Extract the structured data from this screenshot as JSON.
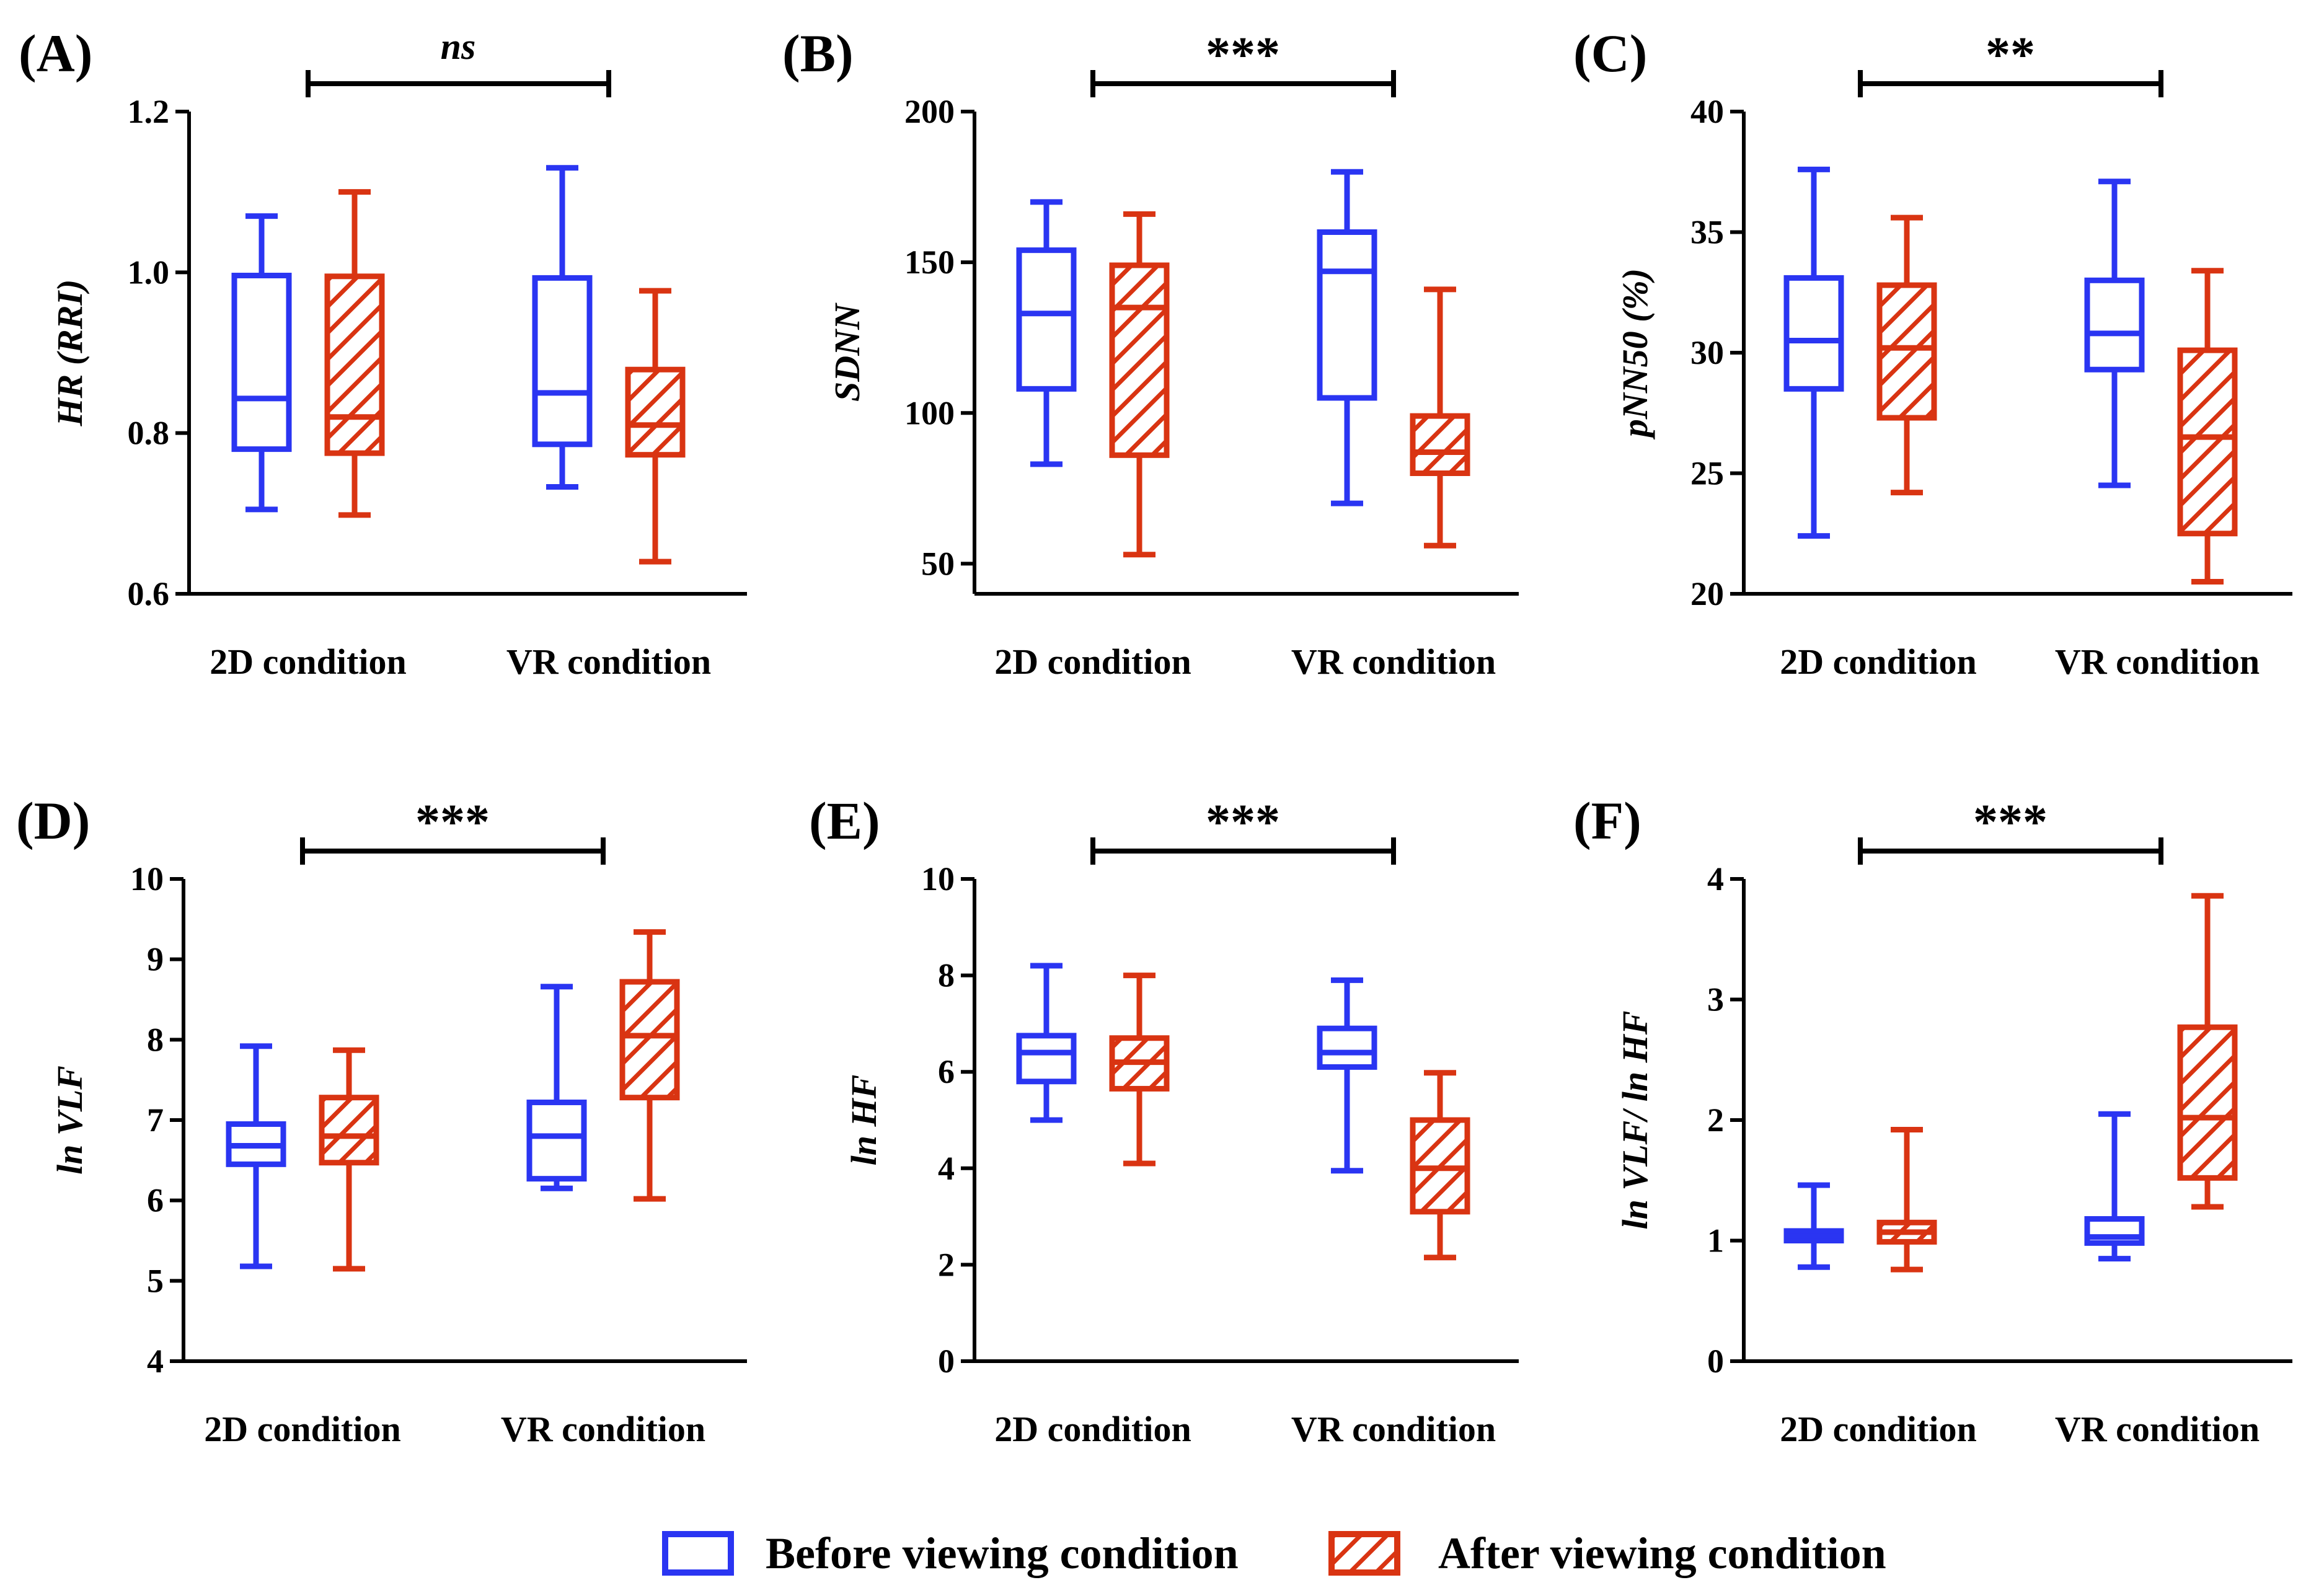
{
  "colors": {
    "before": "#2a35f2",
    "after": "#d93412",
    "axis": "#000000"
  },
  "legend": [
    {
      "label": "Before viewing condition",
      "style": "outline",
      "color": "#2a35f2"
    },
    {
      "label": "After viewing condition",
      "style": "hatched",
      "color": "#d93412"
    }
  ],
  "chart_data": [
    {
      "type": "box",
      "panel": "(A)",
      "ylabel": "HR (RRI)",
      "ylim": [
        0.6,
        1.2
      ],
      "yticks": [
        0.6,
        0.8,
        1.0,
        1.2
      ],
      "ytick_labels": [
        "0.6",
        "0.8",
        "1.0",
        "1.2"
      ],
      "categories": [
        "2D condition",
        "VR condition"
      ],
      "significance": "ns",
      "boxes": [
        {
          "category": "2D condition",
          "series": "Before viewing condition",
          "min": 0.705,
          "q1": 0.78,
          "median": 0.843,
          "q3": 0.996,
          "max": 1.07
        },
        {
          "category": "2D condition",
          "series": "After viewing condition",
          "min": 0.698,
          "q1": 0.775,
          "median": 0.82,
          "q3": 0.995,
          "max": 1.1
        },
        {
          "category": "VR condition",
          "series": "Before viewing condition",
          "min": 0.733,
          "q1": 0.786,
          "median": 0.85,
          "q3": 0.993,
          "max": 1.13
        },
        {
          "category": "VR condition",
          "series": "After viewing condition",
          "min": 0.64,
          "q1": 0.773,
          "median": 0.81,
          "q3": 0.879,
          "max": 0.977
        }
      ]
    },
    {
      "type": "box",
      "panel": "(B)",
      "ylabel": "SDNN",
      "ylim": [
        40,
        200
      ],
      "yticks": [
        50,
        100,
        150,
        200
      ],
      "ytick_labels": [
        "50",
        "100",
        "150",
        "200"
      ],
      "categories": [
        "2D condition",
        "VR condition"
      ],
      "significance": "***",
      "boxes": [
        {
          "category": "2D condition",
          "series": "Before viewing condition",
          "min": 83,
          "q1": 108,
          "median": 133,
          "q3": 154,
          "max": 170
        },
        {
          "category": "2D condition",
          "series": "After viewing condition",
          "min": 53,
          "q1": 86,
          "median": 135,
          "q3": 149,
          "max": 166
        },
        {
          "category": "VR condition",
          "series": "Before viewing condition",
          "min": 70,
          "q1": 105,
          "median": 147,
          "q3": 160,
          "max": 180
        },
        {
          "category": "VR condition",
          "series": "After viewing condition",
          "min": 56,
          "q1": 80,
          "median": 87,
          "q3": 99,
          "max": 141
        }
      ]
    },
    {
      "type": "box",
      "panel": "(C)",
      "ylabel": "pNN50 (%)",
      "ylim": [
        20,
        40
      ],
      "yticks": [
        20,
        25,
        30,
        35,
        40
      ],
      "ytick_labels": [
        "20",
        "25",
        "30",
        "35",
        "40"
      ],
      "categories": [
        "2D condition",
        "VR condition"
      ],
      "significance": "**",
      "boxes": [
        {
          "category": "2D condition",
          "series": "Before viewing condition",
          "min": 22.4,
          "q1": 28.5,
          "median": 30.5,
          "q3": 33.1,
          "max": 37.6
        },
        {
          "category": "2D condition",
          "series": "After viewing condition",
          "min": 24.2,
          "q1": 27.3,
          "median": 30.2,
          "q3": 32.8,
          "max": 35.6
        },
        {
          "category": "VR condition",
          "series": "Before viewing condition",
          "min": 24.5,
          "q1": 29.3,
          "median": 30.8,
          "q3": 33.0,
          "max": 37.1
        },
        {
          "category": "VR condition",
          "series": "After viewing condition",
          "min": 20.5,
          "q1": 22.5,
          "median": 26.5,
          "q3": 30.1,
          "max": 33.4
        }
      ]
    },
    {
      "type": "box",
      "panel": "(D)",
      "ylabel": "ln VLF",
      "ylim": [
        4,
        10
      ],
      "yticks": [
        4,
        5,
        6,
        7,
        8,
        9,
        10
      ],
      "ytick_labels": [
        "4",
        "5",
        "6",
        "7",
        "8",
        "9",
        "10"
      ],
      "categories": [
        "2D condition",
        "VR condition"
      ],
      "significance": "***",
      "boxes": [
        {
          "category": "2D condition",
          "series": "Before viewing condition",
          "min": 5.18,
          "q1": 6.45,
          "median": 6.68,
          "q3": 6.95,
          "max": 7.92
        },
        {
          "category": "2D condition",
          "series": "After viewing condition",
          "min": 5.15,
          "q1": 6.47,
          "median": 6.8,
          "q3": 7.28,
          "max": 7.87
        },
        {
          "category": "VR condition",
          "series": "Before viewing condition",
          "min": 6.15,
          "q1": 6.27,
          "median": 6.8,
          "q3": 7.22,
          "max": 8.66
        },
        {
          "category": "VR condition",
          "series": "After viewing condition",
          "min": 6.02,
          "q1": 7.28,
          "median": 8.05,
          "q3": 8.72,
          "max": 9.34
        }
      ]
    },
    {
      "type": "box",
      "panel": "(E)",
      "ylabel": "ln HF",
      "ylim": [
        0,
        10
      ],
      "yticks": [
        0,
        2,
        4,
        6,
        8,
        10
      ],
      "ytick_labels": [
        "0",
        "2",
        "4",
        "6",
        "8",
        "10"
      ],
      "categories": [
        "2D condition",
        "VR condition"
      ],
      "significance": "***",
      "boxes": [
        {
          "category": "2D condition",
          "series": "Before viewing condition",
          "min": 5.0,
          "q1": 5.8,
          "median": 6.4,
          "q3": 6.75,
          "max": 8.2
        },
        {
          "category": "2D condition",
          "series": "After viewing condition",
          "min": 4.1,
          "q1": 5.65,
          "median": 6.2,
          "q3": 6.7,
          "max": 8.0
        },
        {
          "category": "VR condition",
          "series": "Before viewing condition",
          "min": 3.95,
          "q1": 6.1,
          "median": 6.4,
          "q3": 6.9,
          "max": 7.9
        },
        {
          "category": "VR condition",
          "series": "After viewing condition",
          "min": 2.15,
          "q1": 3.1,
          "median": 4.0,
          "q3": 5.0,
          "max": 5.98
        }
      ]
    },
    {
      "type": "box",
      "panel": "(F)",
      "ylabel": "ln VLF/ ln HF",
      "ylim": [
        0,
        4
      ],
      "yticks": [
        0,
        1,
        2,
        3,
        4
      ],
      "ytick_labels": [
        "0",
        "1",
        "2",
        "3",
        "4"
      ],
      "categories": [
        "2D condition",
        "VR condition"
      ],
      "significance": "***",
      "boxes": [
        {
          "category": "2D condition",
          "series": "Before viewing condition",
          "min": 0.78,
          "q1": 1.0,
          "median": 1.04,
          "q3": 1.08,
          "max": 1.46
        },
        {
          "category": "2D condition",
          "series": "After viewing condition",
          "min": 0.76,
          "q1": 0.99,
          "median": 1.07,
          "q3": 1.15,
          "max": 1.92
        },
        {
          "category": "VR condition",
          "series": "Before viewing condition",
          "min": 0.85,
          "q1": 0.98,
          "median": 1.03,
          "q3": 1.18,
          "max": 2.05
        },
        {
          "category": "VR condition",
          "series": "After viewing condition",
          "min": 1.28,
          "q1": 1.52,
          "median": 2.02,
          "q3": 2.77,
          "max": 3.86
        }
      ]
    }
  ]
}
